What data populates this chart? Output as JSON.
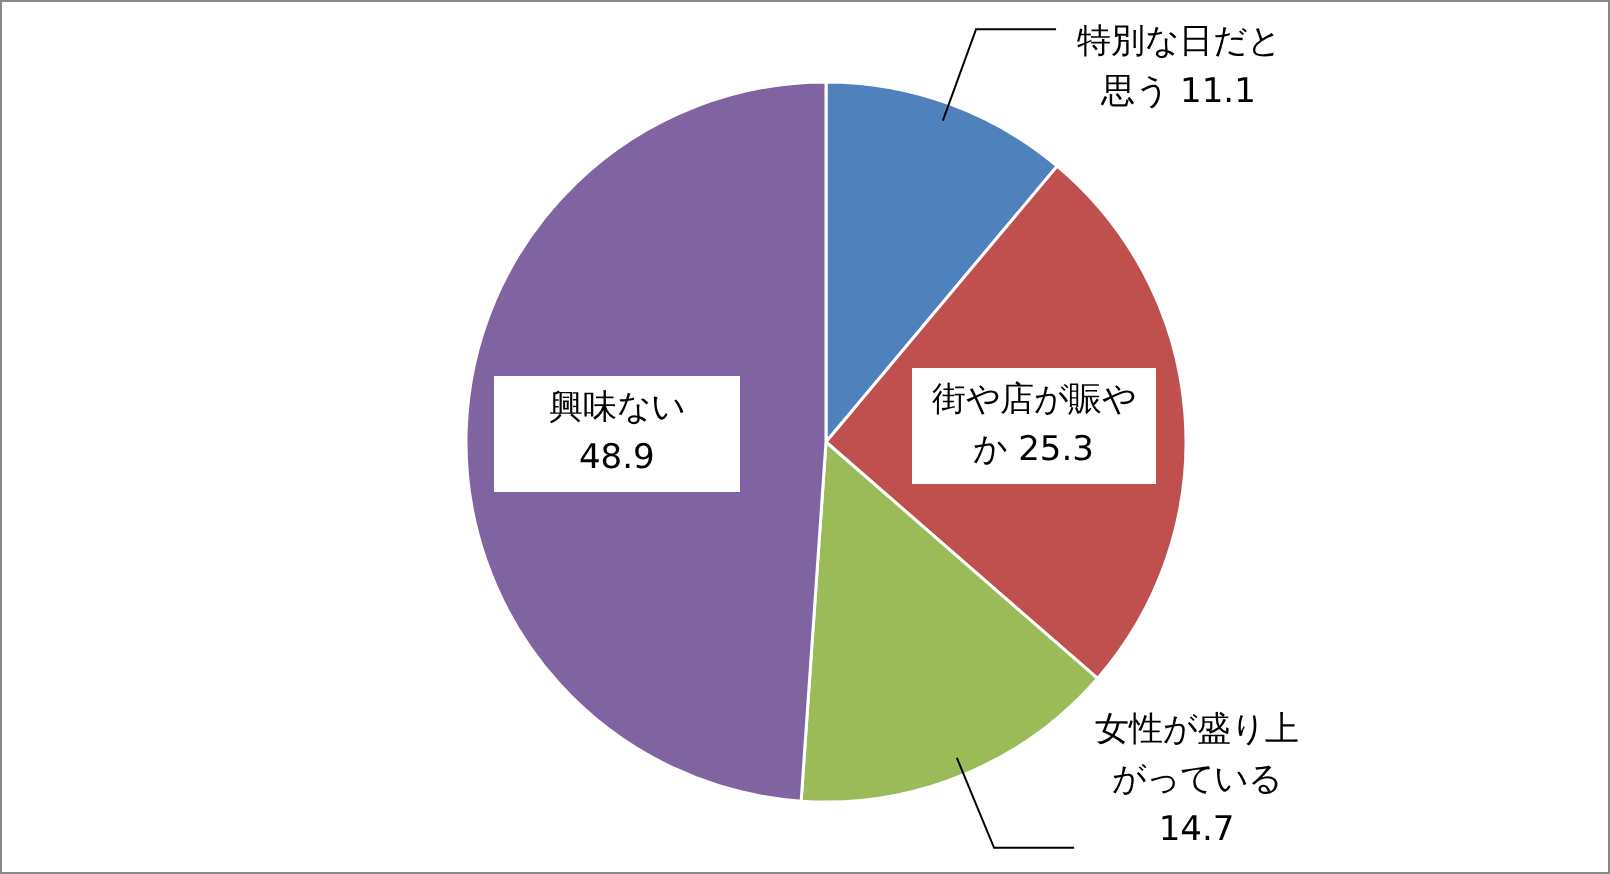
{
  "chart_data": {
    "type": "pie",
    "categories": [
      "特別な日だと思う",
      "街や店が賑やか",
      "女性が盛り上がっている",
      "興味ない"
    ],
    "values": [
      11.1,
      25.3,
      14.7,
      48.9
    ],
    "colors": [
      "#4f81bd",
      "#c0504d",
      "#9bbb59",
      "#8064a2"
    ],
    "data_labels": true
  }
}
